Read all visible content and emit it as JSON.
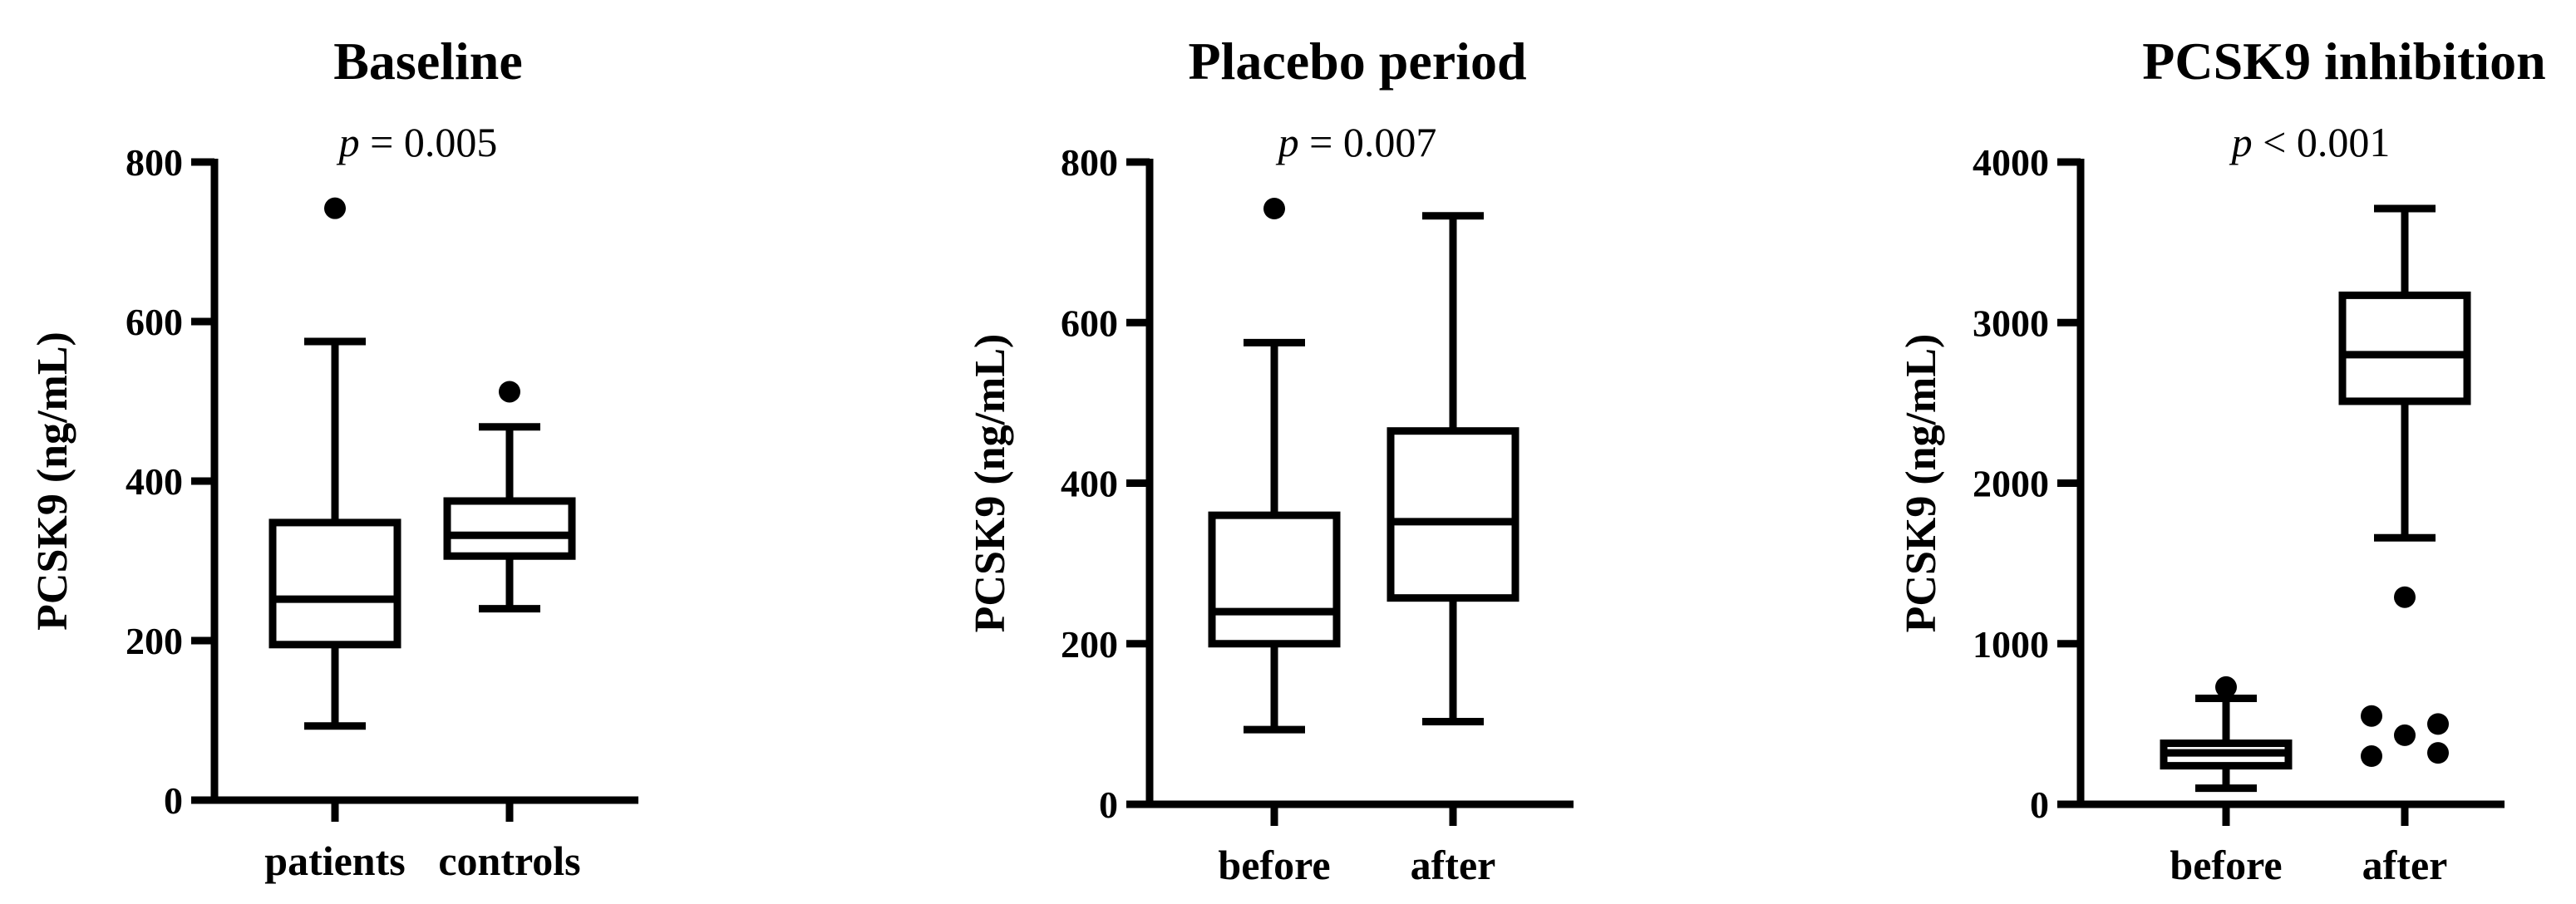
{
  "chart_data": [
    {
      "type": "box",
      "title": "Baseline",
      "annotation": {
        "prefix": "p",
        "text": " = 0.005"
      },
      "ylabel": "PCSK9 (ng/mL)",
      "ylim": [
        0,
        800
      ],
      "yticks": [
        0,
        200,
        400,
        600,
        800
      ],
      "categories": [
        "patients",
        "controls"
      ],
      "boxes": [
        {
          "name": "patients",
          "whisker_low": 93,
          "q1": 195,
          "median": 252,
          "q3": 348,
          "whisker_high": 575,
          "outliers": [
            742
          ]
        },
        {
          "name": "controls",
          "whisker_low": 240,
          "q1": 306,
          "median": 332,
          "q3": 375,
          "whisker_high": 468,
          "outliers": [
            512
          ]
        }
      ]
    },
    {
      "type": "box",
      "title": "Placebo period",
      "annotation": {
        "prefix": "p",
        "text": " = 0.007"
      },
      "ylabel": "PCSK9 (ng/mL)",
      "ylim": [
        0,
        800
      ],
      "yticks": [
        0,
        200,
        400,
        600,
        800
      ],
      "categories": [
        "before",
        "after"
      ],
      "boxes": [
        {
          "name": "before",
          "whisker_low": 93,
          "q1": 200,
          "median": 240,
          "q3": 360,
          "whisker_high": 575,
          "outliers": [
            742
          ]
        },
        {
          "name": "after",
          "whisker_low": 103,
          "q1": 257,
          "median": 352,
          "q3": 465,
          "whisker_high": 733,
          "outliers": []
        }
      ]
    },
    {
      "type": "box",
      "title": "PCSK9 inhibition",
      "annotation": {
        "prefix": "p",
        "text": " < 0.001"
      },
      "ylabel": "PCSK9 (ng/mL)",
      "ylim": [
        0,
        4000
      ],
      "yticks": [
        0,
        1000,
        2000,
        3000,
        4000
      ],
      "categories": [
        "before",
        "after"
      ],
      "boxes": [
        {
          "name": "before",
          "whisker_low": 100,
          "q1": 240,
          "median": 320,
          "q3": 380,
          "whisker_high": 660,
          "outliers": [
            730
          ]
        },
        {
          "name": "after",
          "whisker_low": 1660,
          "q1": 2510,
          "median": 2800,
          "q3": 3170,
          "whisker_high": 3710,
          "outliers": [
            1290,
            550,
            300,
            430,
            500,
            320
          ]
        }
      ]
    }
  ]
}
